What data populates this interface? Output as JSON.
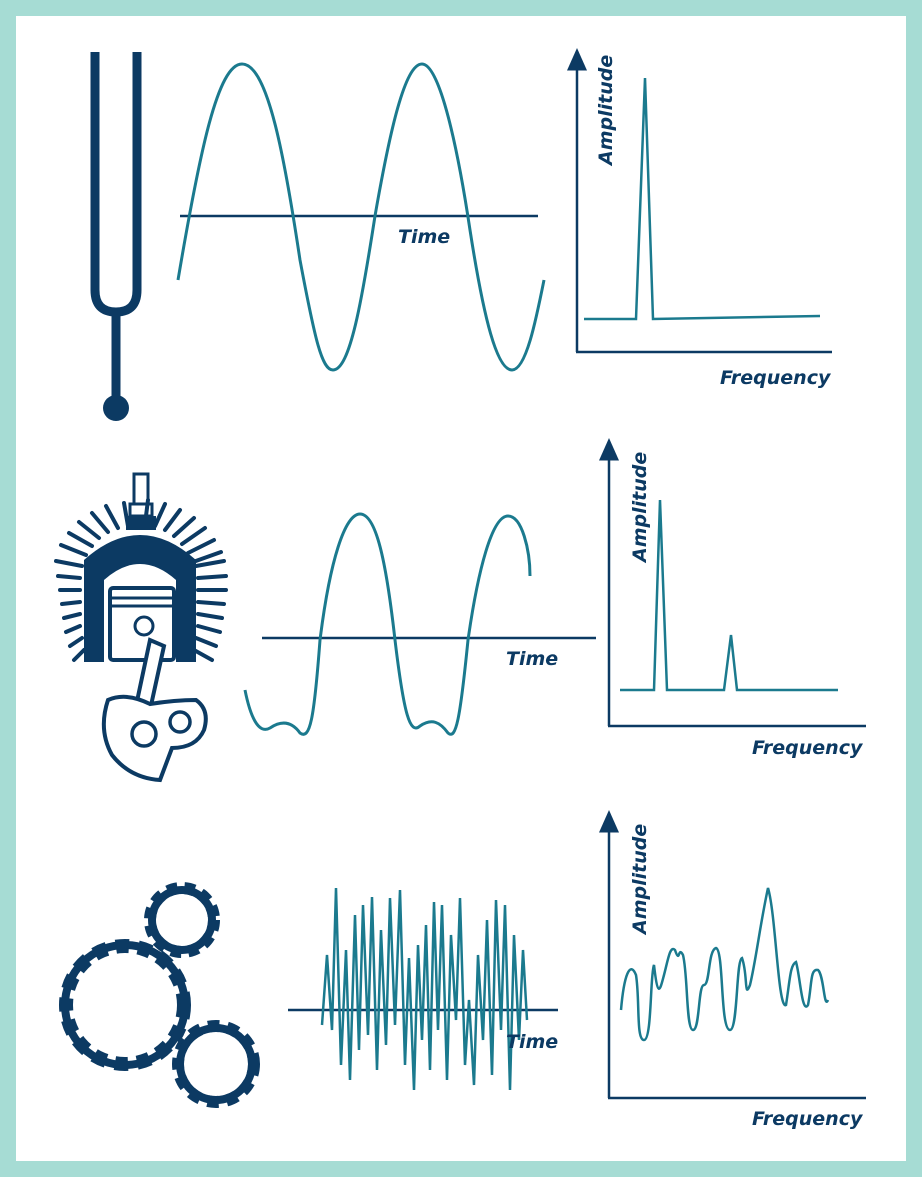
{
  "colors": {
    "frame": "#a6dcd4",
    "background": "#ffffff",
    "wave": "#1b7a8e",
    "icon": "#0c3a63",
    "axis": "#0c3a63",
    "text": "#0c3a63"
  },
  "icons": [
    "tuning-fork-icon",
    "engine-piston-icon",
    "gears-icon"
  ],
  "rows": [
    {
      "time_label": "Time",
      "spectrum": {
        "xlabel": "Frequency",
        "ylabel": "Amplitude"
      }
    },
    {
      "time_label": "Time",
      "spectrum": {
        "xlabel": "Frequency",
        "ylabel": "Amplitude"
      }
    },
    {
      "time_label": "Time",
      "spectrum": {
        "xlabel": "Frequency",
        "ylabel": "Amplitude"
      }
    }
  ]
}
